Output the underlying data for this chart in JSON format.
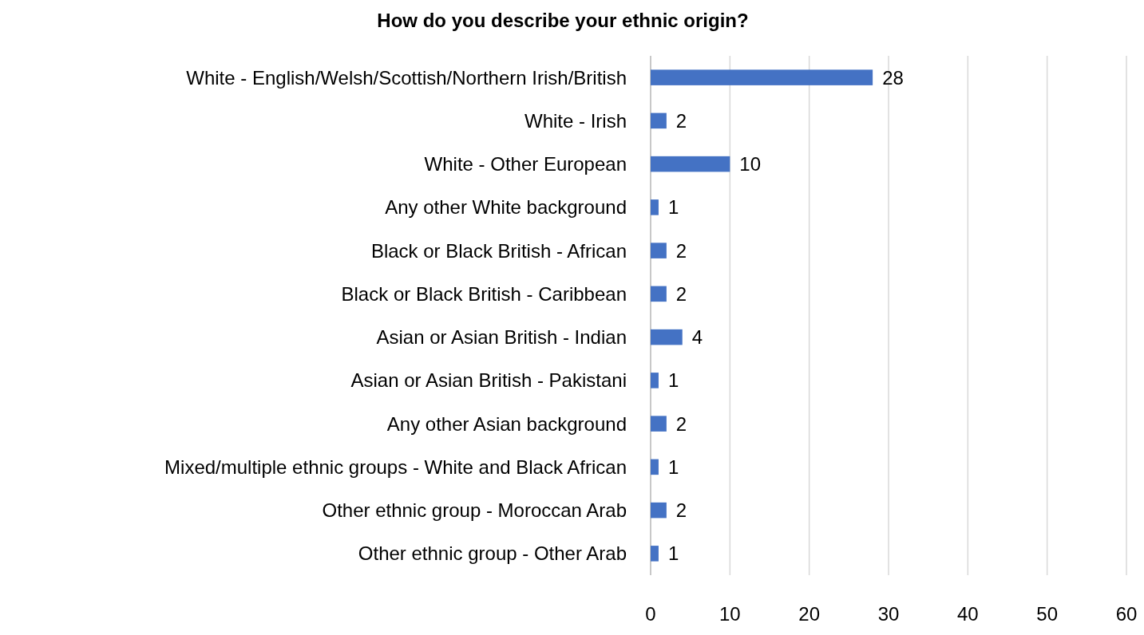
{
  "chart_data": {
    "type": "bar",
    "orientation": "horizontal",
    "title": "How do you describe your ethnic origin?",
    "categories": [
      "White - English/Welsh/Scottish/Northern Irish/British",
      "White - Irish",
      "White - Other European",
      "Any other White background",
      "Black or Black British - African",
      "Black or Black British - Caribbean",
      "Asian or Asian British - Indian",
      "Asian or Asian British - Pakistani",
      "Any other Asian background",
      "Mixed/multiple ethnic groups - White and Black African",
      "Other ethnic group - Moroccan Arab",
      "Other ethnic group - Other Arab"
    ],
    "values": [
      28,
      2,
      10,
      1,
      2,
      2,
      4,
      1,
      2,
      1,
      2,
      1
    ],
    "color": "#4472c4",
    "xlim": [
      0,
      60
    ],
    "xticks": [
      0,
      10,
      20,
      30,
      40,
      50,
      60
    ],
    "grid": "x",
    "data_labels": true
  }
}
